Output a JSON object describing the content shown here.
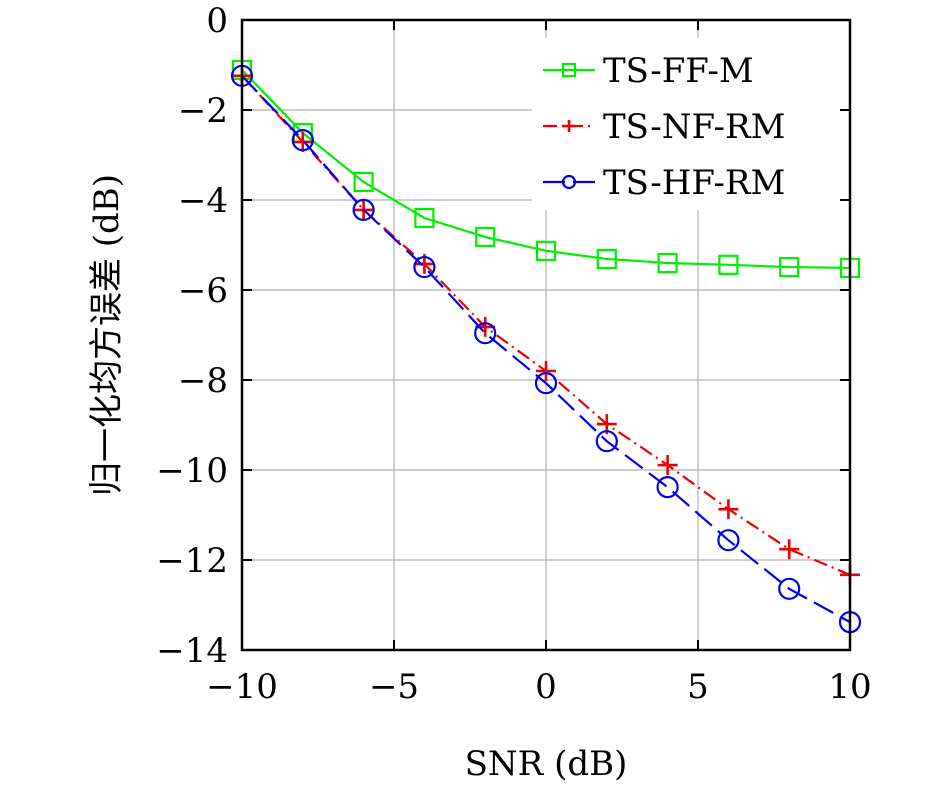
{
  "chart_data": {
    "type": "line",
    "title": "",
    "xlabel": "SNR (dB)",
    "ylabel": "归一化均方误差 (dB)",
    "xlim": [
      -10,
      10
    ],
    "ylim": [
      -14,
      0
    ],
    "xticks": [
      -10,
      -5,
      0,
      5,
      10
    ],
    "xtick_labels": [
      "−10",
      "−5",
      "0",
      "5",
      "10"
    ],
    "yticks": [
      0,
      -2,
      -4,
      -6,
      -8,
      -10,
      -12,
      -14
    ],
    "ytick_labels": [
      "0",
      "−2",
      "−4",
      "−6",
      "−8",
      "−10",
      "−12",
      "−14"
    ],
    "grid": true,
    "legend_position": "top-right",
    "x": [
      -10,
      -8,
      -6,
      -4,
      -2,
      0,
      2,
      4,
      6,
      8,
      10
    ],
    "series": [
      {
        "name": "TS-FF-M",
        "color": "#00ee00",
        "marker": "square",
        "dash": "solid",
        "values": [
          -1.11,
          -2.51,
          -3.6,
          -4.4,
          -4.82,
          -5.13,
          -5.31,
          -5.4,
          -5.44,
          -5.49,
          -5.51
        ]
      },
      {
        "name": "TS-NF-RM",
        "color": "#ee0000",
        "marker": "plus",
        "dash": "dashdot",
        "values": [
          -1.24,
          -2.71,
          -4.22,
          -5.42,
          -6.82,
          -7.8,
          -8.98,
          -9.89,
          -10.87,
          -11.76,
          -12.33
        ]
      },
      {
        "name": "TS-HF-RM",
        "color": "#0000ee",
        "marker": "circle",
        "dash": "dashed",
        "values": [
          -1.24,
          -2.67,
          -4.22,
          -5.49,
          -6.96,
          -8.07,
          -9.36,
          -10.38,
          -11.56,
          -12.64,
          -13.38
        ]
      }
    ]
  }
}
